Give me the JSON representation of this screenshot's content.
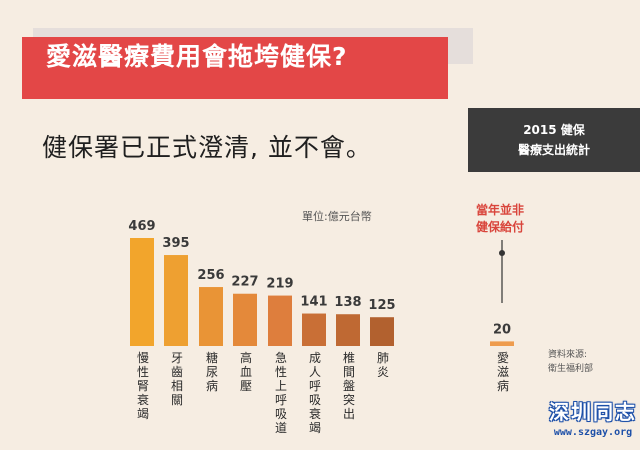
{
  "header": {
    "title": "愛滋醫療費用會拖垮健保?",
    "subtitle": "健保署已正式澄清, 並不會。"
  },
  "stat_box": {
    "line1": "2015 健保",
    "line2": "醫療支出統計"
  },
  "note": {
    "line1": "當年並非",
    "line2": "健保給付"
  },
  "source": {
    "line1": "資料來源:",
    "line2": "衛生福利部"
  },
  "watermark": {
    "name": "深圳同志",
    "url": "www.szgay.org"
  },
  "colors": {
    "title_bg": "#e34747",
    "stat_bg": "#3b3b3b",
    "note": "#d9453c",
    "bars": [
      "#f2a52c",
      "#eea031",
      "#e99436",
      "#e4893a",
      "#de7e3d",
      "#c96f36",
      "#bf6933",
      "#b2612f",
      "#ee9c4e"
    ]
  },
  "chart_data": {
    "type": "bar",
    "title": "",
    "unit_label": "單位:億元台幣",
    "xlabel": "",
    "ylabel": "",
    "categories": [
      "慢性腎衰竭",
      "牙齒相關",
      "糖尿病",
      "高血壓",
      "急性上呼吸道",
      "成人呼吸衰竭",
      "椎間盤突出",
      "肺炎",
      "愛滋病"
    ],
    "values": [
      469,
      395,
      256,
      227,
      219,
      141,
      138,
      125,
      20
    ],
    "ylim": [
      0,
      500
    ],
    "grid": false,
    "legend": "none"
  }
}
